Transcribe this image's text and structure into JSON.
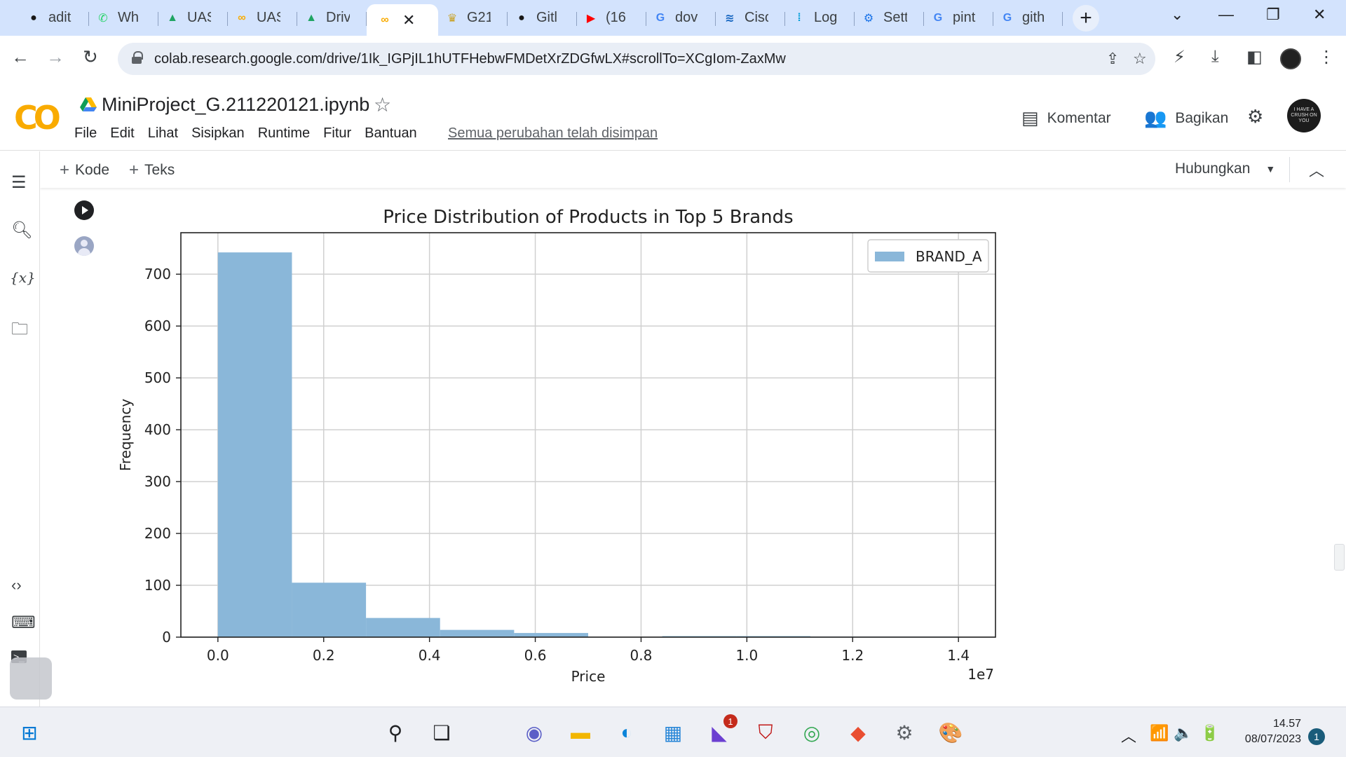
{
  "browser": {
    "tabs": [
      {
        "label": "adit",
        "icon": "github-icon",
        "color": "#181717"
      },
      {
        "label": "Wh",
        "icon": "whatsapp-icon",
        "color": "#25d366"
      },
      {
        "label": "UAS",
        "icon": "google-drive-icon",
        "color": "#1fa463"
      },
      {
        "label": "UAS",
        "icon": "colab-icon",
        "color": "#f9ab00"
      },
      {
        "label": "Driv",
        "icon": "google-drive-icon",
        "color": "#1fa463"
      },
      {
        "label": "",
        "icon": "colab-icon",
        "color": "#f9ab00",
        "active": true
      },
      {
        "label": "G21",
        "icon": "university-icon",
        "color": "#c9a227"
      },
      {
        "label": "Gitl",
        "icon": "github-icon",
        "color": "#181717"
      },
      {
        "label": "(16",
        "icon": "youtube-icon",
        "color": "#ff0000"
      },
      {
        "label": "dov",
        "icon": "google-icon",
        "color": "#4285f4"
      },
      {
        "label": "Cisc",
        "icon": "cisco-icon",
        "color": "#1565c0"
      },
      {
        "label": "Log",
        "icon": "cisco-logo-icon",
        "color": "#049fd9"
      },
      {
        "label": "Sett",
        "icon": "settings-icon",
        "color": "#1a73e8"
      },
      {
        "label": "pint",
        "icon": "google-icon",
        "color": "#4285f4"
      },
      {
        "label": "gith",
        "icon": "google-icon",
        "color": "#4285f4"
      }
    ],
    "url": "colab.research.google.com/drive/1Ik_IGPjIL1hUTFHebwFMDetXrZDGfwLX#scrollTo=XCgIom-ZaxMw"
  },
  "colab": {
    "notebook_title": "MiniProject_G.211220121.ipynb",
    "menu": [
      "File",
      "Edit",
      "Lihat",
      "Sisipkan",
      "Runtime",
      "Fitur",
      "Bantuan"
    ],
    "saved_status": "Semua perubahan telah disimpan",
    "comment_label": "Komentar",
    "share_label": "Bagikan",
    "avatar_text": "I HAVE A CRUSH ON YOU",
    "toolbar": {
      "add_code": "Kode",
      "add_text": "Teks",
      "connect": "Hubungkan"
    }
  },
  "chart_data": {
    "type": "bar",
    "title": "Price Distribution of Products in Top 5 Brands",
    "xlabel": "Price",
    "ylabel": "Frequency",
    "x_offset_label": "1e7",
    "xlim": [
      -0.07,
      1.47
    ],
    "ylim": [
      0,
      780
    ],
    "grid": true,
    "legend_position": "top-right",
    "xticks": [
      "0.0",
      "0.2",
      "0.4",
      "0.6",
      "0.8",
      "1.0",
      "1.2",
      "1.4"
    ],
    "xtick_values": [
      0.0,
      0.2,
      0.4,
      0.6,
      0.8,
      1.0,
      1.2,
      1.4
    ],
    "yticks": [
      "0",
      "100",
      "200",
      "300",
      "400",
      "500",
      "600",
      "700"
    ],
    "ytick_values": [
      0,
      100,
      200,
      300,
      400,
      500,
      600,
      700
    ],
    "bin_edges": [
      0.0,
      0.14,
      0.28,
      0.42,
      0.56,
      0.7,
      0.84,
      0.98,
      1.12,
      1.26,
      1.4
    ],
    "series": [
      {
        "name": "BRAND_A",
        "color": "#8ab7d9",
        "values": [
          742,
          105,
          37,
          14,
          8,
          0,
          2,
          2,
          1,
          1
        ]
      }
    ]
  },
  "taskbar": {
    "apps": [
      {
        "name": "start-icon",
        "color": "#0078d4"
      },
      {
        "name": "search-icon",
        "color": "#202124"
      },
      {
        "name": "task-view-icon",
        "color": "#202124"
      },
      {
        "name": "teams-chat-icon",
        "color": "#5b5fc7"
      },
      {
        "name": "file-explorer-icon",
        "color": "#f2b600"
      },
      {
        "name": "edge-icon",
        "color": "#0c84d9"
      },
      {
        "name": "store-icon",
        "color": "#2b88d8"
      },
      {
        "name": "vscode-icon",
        "color": "#6b3fd1"
      },
      {
        "name": "mcafee-icon",
        "color": "#c01818"
      },
      {
        "name": "chrome-icon",
        "color": "#34a853"
      },
      {
        "name": "git-icon",
        "color": "#e94e31"
      },
      {
        "name": "settings-icon",
        "color": "#5f6368"
      },
      {
        "name": "paint-icon",
        "color": "#3aa0e0"
      }
    ],
    "vscode_badge": "1",
    "time": "14.57",
    "date": "08/07/2023",
    "notification_count": "1"
  }
}
